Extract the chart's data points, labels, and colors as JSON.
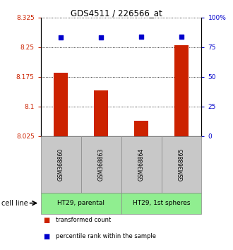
{
  "title": "GDS4511 / 226566_at",
  "samples": [
    "GSM368860",
    "GSM368863",
    "GSM368864",
    "GSM368865"
  ],
  "bar_values": [
    8.185,
    8.14,
    8.065,
    8.255
  ],
  "bar_bottom": 8.025,
  "percentile_values": [
    83,
    83,
    84,
    84
  ],
  "ylim_left": [
    8.025,
    8.325
  ],
  "ylim_right": [
    0,
    100
  ],
  "yticks_left": [
    8.025,
    8.1,
    8.175,
    8.25,
    8.325
  ],
  "ytick_labels_left": [
    "8.025",
    "8.1",
    "8.175",
    "8.25",
    "8.325"
  ],
  "yticks_right": [
    0,
    25,
    50,
    75,
    100
  ],
  "ytick_labels_right": [
    "0",
    "25",
    "50",
    "75",
    "100%"
  ],
  "bar_color": "#cc2200",
  "dot_color": "#0000cc",
  "cell_line_labels": [
    "HT29, parental",
    "HT29, 1st spheres"
  ],
  "cell_line_spans": [
    [
      0,
      2
    ],
    [
      2,
      4
    ]
  ],
  "cell_line_color": "#90ee90",
  "gsm_box_color": "#c8c8c8",
  "legend_bar_label": "transformed count",
  "legend_dot_label": "percentile rank within the sample",
  "cell_line_text": "cell line",
  "background_color": "#ffffff"
}
